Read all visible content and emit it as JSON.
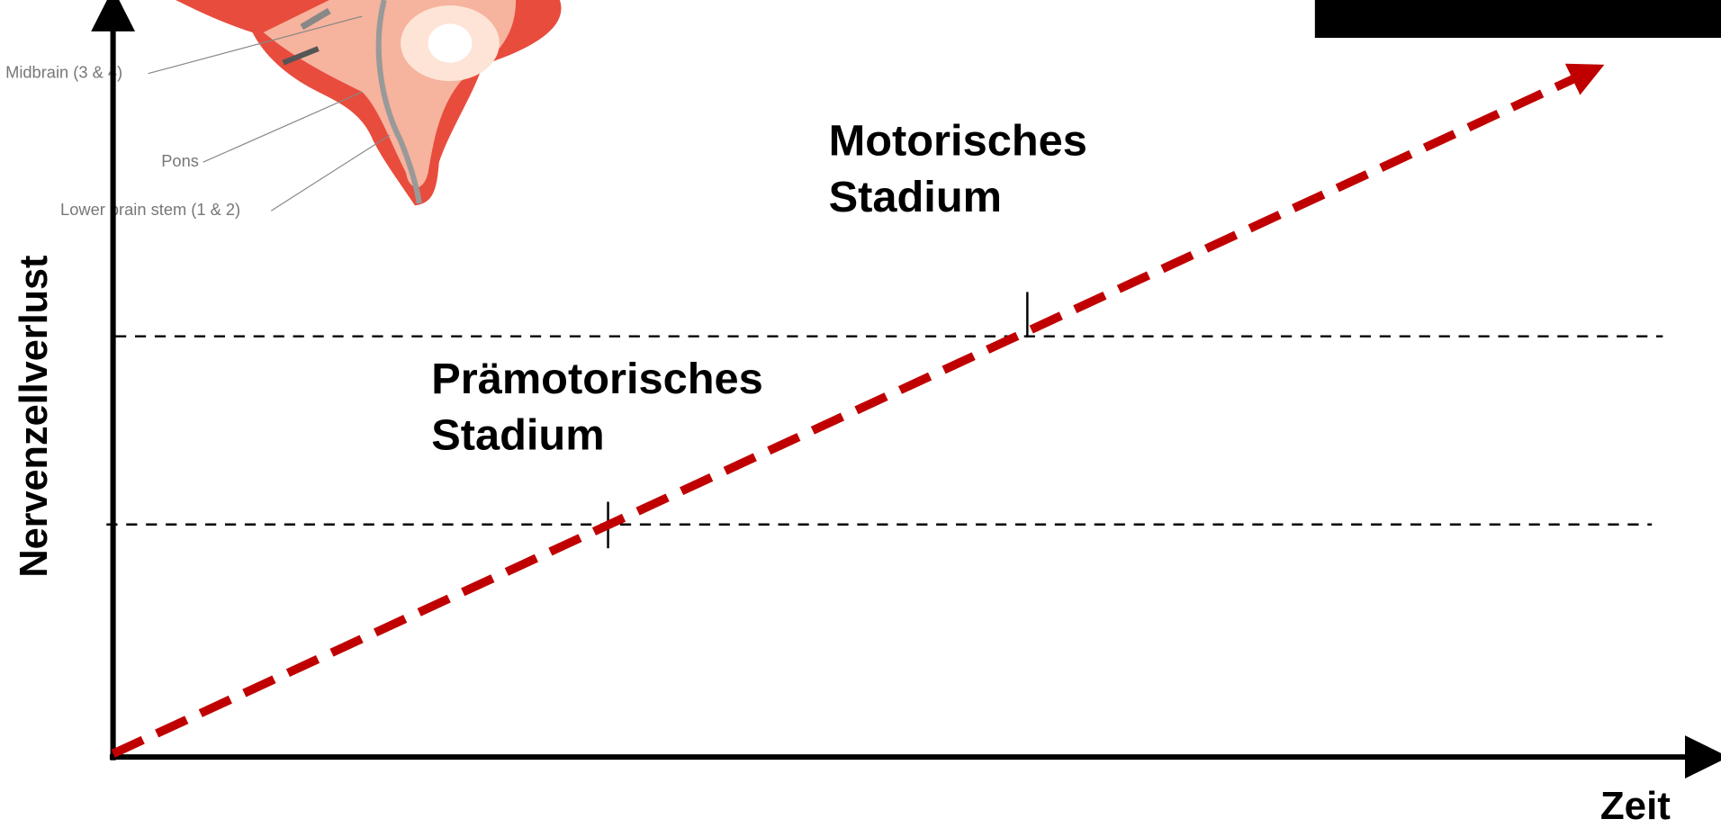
{
  "axes": {
    "y_label": "Nervenzellverlust",
    "x_label": "Zeit"
  },
  "stages": [
    {
      "lines": [
        "Prämotorisches",
        "Stadium"
      ]
    },
    {
      "lines": [
        "Motorisches",
        "Stadium"
      ]
    }
  ],
  "brain_labels": [
    "Midbrain (3 & 4)",
    "Pons",
    "Lower brain stem (1 & 2)"
  ]
}
